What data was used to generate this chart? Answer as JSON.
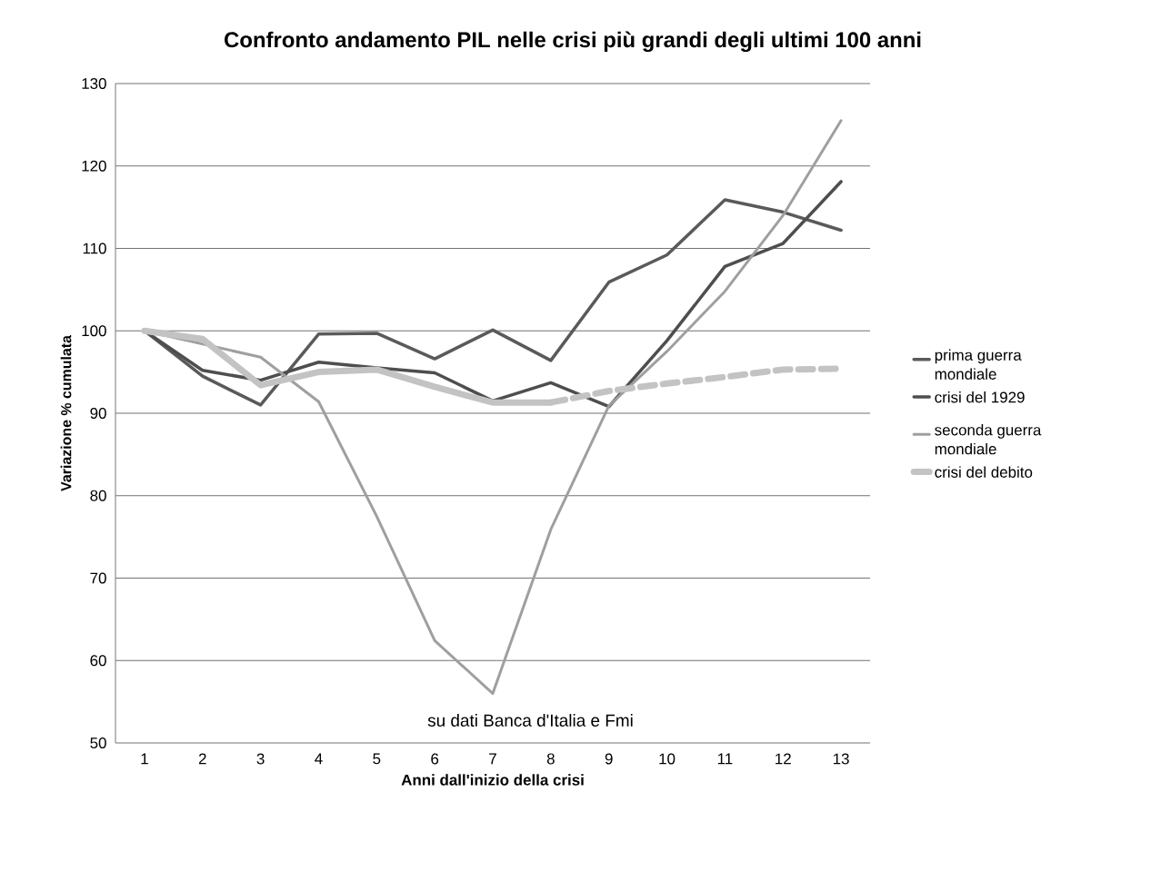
{
  "chart_data": {
    "type": "line",
    "title": "Confronto andamento PIL nelle crisi più grandi degli ultimi 100 anni",
    "xlabel": "Anni  dall'inizio  della crisi",
    "ylabel": "Variazione % cumulata",
    "categories": [
      "1",
      "2",
      "3",
      "4",
      "5",
      "6",
      "7",
      "8",
      "9",
      "10",
      "11",
      "12",
      "13"
    ],
    "series": [
      {
        "name": "prima guerra mondiale",
        "color": "#5a5a5a",
        "values": [
          100,
          94.5,
          91.0,
          99.6,
          99.7,
          96.6,
          100.1,
          96.4,
          105.9,
          109.2,
          115.9,
          114.4,
          112.2
        ]
      },
      {
        "name": "crisi del 1929",
        "color": "#4e4e4e",
        "values": [
          100,
          95.2,
          94.0,
          96.2,
          95.5,
          94.9,
          91.5,
          93.7,
          90.8,
          98.8,
          107.8,
          110.6,
          118.1
        ]
      },
      {
        "name": "seconda guerra mondiale",
        "color": "#9f9f9f",
        "values": [
          100,
          98.4,
          96.8,
          91.4,
          77.5,
          62.4,
          56.0,
          75.9,
          90.9,
          97.5,
          104.8,
          114.0,
          125.5
        ]
      },
      {
        "name": "crisi del debito",
        "color": "#c3c3c3",
        "values": [
          100,
          99.0,
          93.4,
          95.0,
          95.3,
          93.2,
          91.3,
          91.3,
          null,
          null,
          null,
          null,
          null
        ]
      },
      {
        "color": "#c3c3c3",
        "line_style": "dashed",
        "values": [
          null,
          null,
          null,
          null,
          null,
          null,
          null,
          91.3,
          92.7,
          93.6,
          94.4,
          95.3,
          95.4
        ]
      }
    ],
    "ylim": [
      50,
      130
    ],
    "yticks": [
      50,
      60,
      70,
      80,
      90,
      100,
      110,
      120,
      130
    ],
    "grid": "y",
    "legend": "right",
    "marker": "none",
    "line_style": "solid",
    "annotations": [
      "su dati Banca d'Italia e Fmi"
    ]
  }
}
